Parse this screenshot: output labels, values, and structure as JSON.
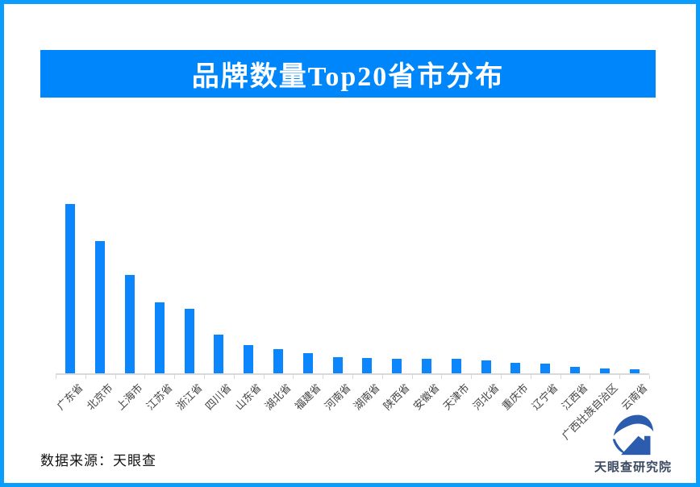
{
  "colors": {
    "frame_border": "#0a9dfc",
    "banner_bg": "#0086fb",
    "banner_text": "#ffffff",
    "bar": "#0b86fc",
    "axis": "#d9d9d9",
    "axis_label": "#444444",
    "source_text": "#111111",
    "logo_text": "#3b4a60",
    "logo_icon": "#2b5cad"
  },
  "footer": {
    "source": "数据来源：天眼查",
    "logo_text": "天眼查研究院"
  },
  "chart_data": {
    "type": "bar",
    "title": "品牌数量Top20省市分布",
    "categories": [
      "广东省",
      "北京市",
      "上海市",
      "江苏省",
      "浙江省",
      "四川省",
      "山东省",
      "湖北省",
      "福建省",
      "河南省",
      "湖南省",
      "陕西省",
      "安徽省",
      "天津市",
      "河北省",
      "重庆市",
      "辽宁省",
      "江西省",
      "广西壮族自治区",
      "云南省"
    ],
    "values": [
      210,
      164,
      122,
      88,
      80,
      48,
      35,
      30,
      25,
      20,
      19,
      18,
      18,
      18,
      16,
      13,
      12,
      8,
      6,
      5
    ],
    "value_axis_note": "no numeric axis or gridlines shown; values are relative estimates of bar heights",
    "xlabel": "",
    "ylabel": "",
    "legend": "none",
    "grid": false,
    "bar_color": "#0b86fc",
    "x_label_rotation_deg": 45
  }
}
